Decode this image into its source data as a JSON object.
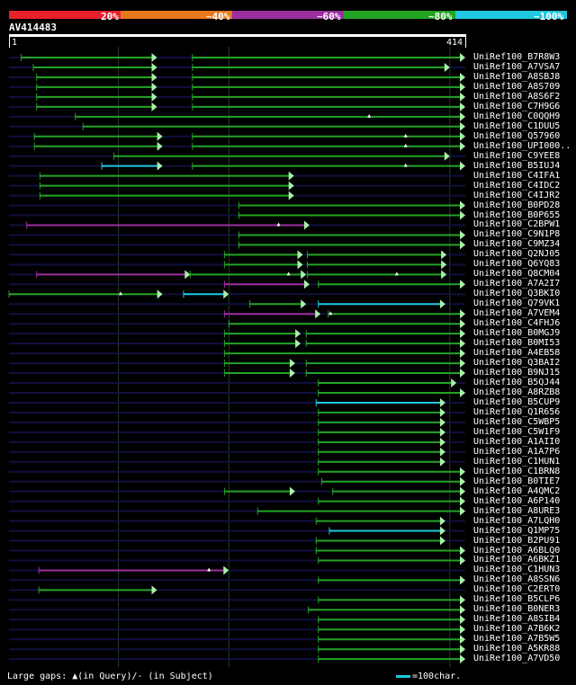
{
  "colors": {
    "identity_20": "#e8202c",
    "identity_40": "#e8781e",
    "identity_60": "#9c2fa0",
    "identity_80": "#22a322",
    "identity_100": "#1ec8e0",
    "low_bg": "#101040",
    "grid": "#2a3a2a",
    "arrow": "#a8f0a8"
  },
  "legend": {
    "labels": [
      "20%",
      "~40%",
      "~60%",
      "~80%",
      "~100%"
    ]
  },
  "query": {
    "id": "AV414483",
    "start": "1",
    "end": "414",
    "length": 414
  },
  "hits": [
    {
      "name": "UniRef100_B7R8W3",
      "segs": [
        [
          12,
          135,
          "g"
        ],
        [
          167,
          414,
          "g"
        ]
      ],
      "marks": []
    },
    {
      "name": "UniRef100_A7VSA7",
      "segs": [
        [
          23,
          135,
          "g"
        ],
        [
          167,
          400,
          "g"
        ]
      ],
      "marks": []
    },
    {
      "name": "UniRef100_A8SBJ8",
      "segs": [
        [
          26,
          135,
          "g"
        ],
        [
          167,
          414,
          "g"
        ]
      ],
      "marks": []
    },
    {
      "name": "UniRef100_A8S709",
      "segs": [
        [
          26,
          135,
          "g"
        ],
        [
          167,
          414,
          "g"
        ]
      ],
      "marks": []
    },
    {
      "name": "UniRef100_A8S6F2",
      "segs": [
        [
          26,
          135,
          "g"
        ],
        [
          167,
          414,
          "g"
        ]
      ],
      "marks": []
    },
    {
      "name": "UniRef100_C7H9G6",
      "segs": [
        [
          26,
          135,
          "g"
        ],
        [
          167,
          414,
          "g"
        ]
      ],
      "marks": []
    },
    {
      "name": "UniRef100_C0QQH9",
      "segs": [
        [
          61,
          414,
          "g"
        ]
      ],
      "marks": [
        327
      ]
    },
    {
      "name": "UniRef100_C1DUU5",
      "segs": [
        [
          68,
          414,
          "g"
        ]
      ],
      "marks": []
    },
    {
      "name": "UniRef100_Q57960",
      "segs": [
        [
          24,
          140,
          "g"
        ],
        [
          167,
          414,
          "g"
        ]
      ],
      "marks": [
        360
      ]
    },
    {
      "name": "UniRef100_UPI000..",
      "segs": [
        [
          24,
          140,
          "g"
        ],
        [
          167,
          414,
          "g"
        ]
      ],
      "marks": [
        360
      ]
    },
    {
      "name": "UniRef100_C9YEE8",
      "segs": [
        [
          96,
          400,
          "g"
        ]
      ],
      "marks": []
    },
    {
      "name": "UniRef100_B5IUJ4",
      "segs": [
        [
          85,
          140,
          "c"
        ],
        [
          167,
          414,
          "g"
        ]
      ],
      "marks": [
        360
      ]
    },
    {
      "name": "UniRef100_C4IFA1",
      "segs": [
        [
          29,
          259,
          "g"
        ]
      ],
      "marks": []
    },
    {
      "name": "UniRef100_C4IDC2",
      "segs": [
        [
          29,
          259,
          "g"
        ]
      ],
      "marks": []
    },
    {
      "name": "UniRef100_C4IJR2",
      "segs": [
        [
          29,
          259,
          "g"
        ]
      ],
      "marks": []
    },
    {
      "name": "UniRef100_B0PD28",
      "segs": [
        [
          209,
          414,
          "g"
        ]
      ],
      "marks": []
    },
    {
      "name": "UniRef100_B0P655",
      "segs": [
        [
          209,
          414,
          "g"
        ]
      ],
      "marks": []
    },
    {
      "name": "UniRef100_C2BPW1",
      "segs": [
        [
          17,
          273,
          "p"
        ]
      ],
      "marks": [
        245
      ]
    },
    {
      "name": "UniRef100_C9N1P8",
      "segs": [
        [
          209,
          414,
          "g"
        ]
      ],
      "marks": []
    },
    {
      "name": "UniRef100_C9MZ34",
      "segs": [
        [
          209,
          414,
          "g"
        ]
      ],
      "marks": []
    },
    {
      "name": "UniRef100_Q2NJ05",
      "segs": [
        [
          196,
          267,
          "g"
        ],
        [
          271,
          397,
          "g"
        ]
      ],
      "marks": []
    },
    {
      "name": "UniRef100_Q6YQ83",
      "segs": [
        [
          196,
          267,
          "g"
        ],
        [
          271,
          397,
          "g"
        ]
      ],
      "marks": []
    },
    {
      "name": "UniRef100_Q8CM04",
      "segs": [
        [
          26,
          165,
          "p"
        ],
        [
          165,
          270,
          "g"
        ],
        [
          271,
          397,
          "g"
        ]
      ],
      "marks": [
        254,
        352
      ]
    },
    {
      "name": "UniRef100_A7A2I7",
      "segs": [
        [
          196,
          273,
          "p"
        ],
        [
          281,
          414,
          "g"
        ]
      ],
      "marks": []
    },
    {
      "name": "UniRef100_Q3BKI0",
      "segs": [
        [
          1,
          140,
          "g"
        ],
        [
          159,
          200,
          "c"
        ]
      ],
      "marks": [
        102
      ]
    },
    {
      "name": "UniRef100_Q79VK1",
      "segs": [
        [
          219,
          270,
          "g"
        ],
        [
          281,
          396,
          "c"
        ]
      ],
      "marks": []
    },
    {
      "name": "UniRef100_A7VEM4",
      "segs": [
        [
          196,
          283,
          "p"
        ],
        [
          290,
          414,
          "g"
        ]
      ],
      "marks": [
        292
      ]
    },
    {
      "name": "UniRef100_C4FHJ6",
      "segs": [
        [
          200,
          414,
          "g"
        ]
      ],
      "marks": []
    },
    {
      "name": "UniRef100_B0MGJ9",
      "segs": [
        [
          196,
          265,
          "g"
        ],
        [
          270,
          414,
          "g"
        ]
      ],
      "marks": []
    },
    {
      "name": "UniRef100_B0MI53",
      "segs": [
        [
          196,
          265,
          "g"
        ],
        [
          270,
          414,
          "g"
        ]
      ],
      "marks": []
    },
    {
      "name": "UniRef100_A4EB58",
      "segs": [
        [
          196,
          414,
          "g"
        ]
      ],
      "marks": []
    },
    {
      "name": "UniRef100_Q3BAI2",
      "segs": [
        [
          196,
          260,
          "g"
        ],
        [
          270,
          414,
          "g"
        ]
      ],
      "marks": []
    },
    {
      "name": "UniRef100_B9NJ15",
      "segs": [
        [
          196,
          260,
          "g"
        ],
        [
          270,
          414,
          "g"
        ]
      ],
      "marks": []
    },
    {
      "name": "UniRef100_B5QJ44",
      "segs": [
        [
          281,
          406,
          "g"
        ]
      ],
      "marks": []
    },
    {
      "name": "UniRef100_A8RZB8",
      "segs": [
        [
          281,
          414,
          "g"
        ]
      ],
      "marks": []
    },
    {
      "name": "UniRef100_B5CUP9",
      "segs": [
        [
          279,
          396,
          "c"
        ]
      ],
      "marks": []
    },
    {
      "name": "UniRef100_Q1R656",
      "segs": [
        [
          281,
          396,
          "g"
        ]
      ],
      "marks": []
    },
    {
      "name": "UniRef100_C5WBP5",
      "segs": [
        [
          281,
          396,
          "g"
        ]
      ],
      "marks": []
    },
    {
      "name": "UniRef100_C5W1F9",
      "segs": [
        [
          281,
          396,
          "g"
        ]
      ],
      "marks": []
    },
    {
      "name": "UniRef100_A1AII0",
      "segs": [
        [
          281,
          396,
          "g"
        ]
      ],
      "marks": []
    },
    {
      "name": "UniRef100_A1A7P6",
      "segs": [
        [
          281,
          396,
          "g"
        ]
      ],
      "marks": []
    },
    {
      "name": "UniRef100_C1HUN1",
      "segs": [
        [
          281,
          396,
          "g"
        ]
      ],
      "marks": []
    },
    {
      "name": "UniRef100_C1BRN8",
      "segs": [
        [
          281,
          414,
          "g"
        ]
      ],
      "marks": []
    },
    {
      "name": "UniRef100_B0TIE7",
      "segs": [
        [
          284,
          414,
          "g"
        ]
      ],
      "marks": []
    },
    {
      "name": "UniRef100_A4QMC2",
      "segs": [
        [
          196,
          260,
          "g"
        ],
        [
          294,
          414,
          "g"
        ]
      ],
      "marks": []
    },
    {
      "name": "UniRef100_A6P140",
      "segs": [
        [
          281,
          414,
          "g"
        ]
      ],
      "marks": []
    },
    {
      "name": "UniRef100_A8URE3",
      "segs": [
        [
          226,
          414,
          "g"
        ]
      ],
      "marks": []
    },
    {
      "name": "UniRef100_A7LQH0",
      "segs": [
        [
          279,
          396,
          "g"
        ]
      ],
      "marks": []
    },
    {
      "name": "UniRef100_Q1MP75",
      "segs": [
        [
          291,
          396,
          "c"
        ]
      ],
      "marks": []
    },
    {
      "name": "UniRef100_B2PU91",
      "segs": [
        [
          279,
          396,
          "g"
        ]
      ],
      "marks": []
    },
    {
      "name": "UniRef100_A6BLQ0",
      "segs": [
        [
          279,
          414,
          "g"
        ]
      ],
      "marks": []
    },
    {
      "name": "UniRef100_A6BKZ1",
      "segs": [
        [
          281,
          414,
          "g"
        ]
      ],
      "marks": []
    },
    {
      "name": "UniRef100_C1HUN3",
      "segs": [
        [
          28,
          200,
          "p"
        ]
      ],
      "marks": [
        182
      ]
    },
    {
      "name": "UniRef100_A8SSN6",
      "segs": [
        [
          281,
          414,
          "g"
        ]
      ],
      "marks": []
    },
    {
      "name": "UniRef100_C2ERT0",
      "segs": [
        [
          28,
          135,
          "g"
        ]
      ],
      "marks": []
    },
    {
      "name": "UniRef100_B5CLP6",
      "segs": [
        [
          281,
          414,
          "g"
        ]
      ],
      "marks": []
    },
    {
      "name": "UniRef100_B0NER3",
      "segs": [
        [
          272,
          414,
          "g"
        ]
      ],
      "marks": []
    },
    {
      "name": "UniRef100_A8SIB4",
      "segs": [
        [
          281,
          414,
          "g"
        ]
      ],
      "marks": []
    },
    {
      "name": "UniRef100_A7B6K2",
      "segs": [
        [
          281,
          414,
          "g"
        ]
      ],
      "marks": []
    },
    {
      "name": "UniRef100_A7B5W5",
      "segs": [
        [
          281,
          414,
          "g"
        ]
      ],
      "marks": []
    },
    {
      "name": "UniRef100_A5KR88",
      "segs": [
        [
          281,
          414,
          "g"
        ]
      ],
      "marks": []
    },
    {
      "name": "UniRef100_A7VD50",
      "segs": [
        [
          281,
          414,
          "g"
        ]
      ],
      "marks": []
    }
  ],
  "footer": {
    "gaps_text": "Large gaps: ▲(in Query)/- (in Subject)",
    "scale_text": "=100char."
  }
}
